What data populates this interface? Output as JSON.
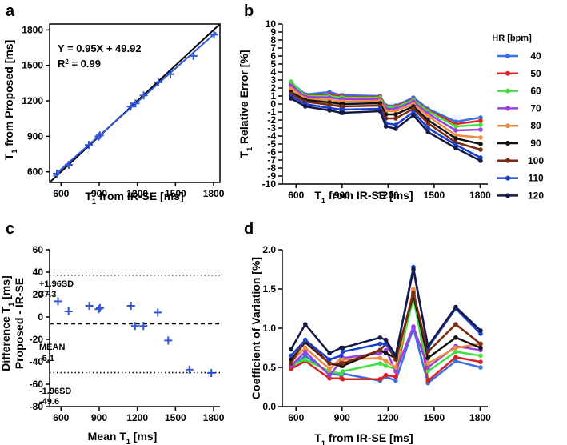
{
  "panels": {
    "a": {
      "letter": "a",
      "xlabel_pre": "T",
      "xlabel_sub": "1",
      "xlabel_post": " from IR-SE [ms]",
      "ylabel_pre": "T",
      "ylabel_sub": "1",
      "ylabel_post": " from Proposed [ms]",
      "eq_line1": "Y = 0.95X + 49.92",
      "eq_line2_pre": "R",
      "eq_line2_sup": "2",
      "eq_line2_post": " = 0.99"
    },
    "b": {
      "letter": "b",
      "xlabel_pre": "T",
      "xlabel_sub": "1",
      "xlabel_post": " from IR-SE [ms]",
      "ylabel_pre": "T",
      "ylabel_sub": "1",
      "ylabel_post": " Relative Error [%]",
      "legend_title": "HR [bpm]"
    },
    "c": {
      "letter": "c",
      "xlabel_pre": "Mean T",
      "xlabel_sub": "1",
      "xlabel_post": " [ms]",
      "ylabel1_pre": "Difference T",
      "ylabel1_sub": "1",
      "ylabel1_post": " [ms]",
      "ylabel2": "Proposed - IR-SE",
      "upper_label": "+1.96SD",
      "upper_value": "37.3",
      "mean_label": "MEAN",
      "mean_value": "-6.1",
      "lower_label": "-1.96SD",
      "lower_value": "-49.6"
    },
    "d": {
      "letter": "d",
      "xlabel_pre": "T",
      "xlabel_sub": "1",
      "xlabel_post": " from IR-SE [ms]",
      "ylabel": "Coefficient of Variation [%]"
    }
  },
  "chart_data": [
    {
      "id": "a",
      "type": "scatter",
      "title": "",
      "xlabel": "T1 from IR-SE [ms]",
      "ylabel": "T1 from Proposed [ms]",
      "xlim": [
        510,
        1850
      ],
      "ylim": [
        510,
        1850
      ],
      "xticks": [
        600,
        900,
        1200,
        1500,
        1800
      ],
      "yticks": [
        600,
        900,
        1200,
        1500,
        1800
      ],
      "x": [
        567,
        660,
        818,
        895,
        905,
        1148,
        1186,
        1250,
        1365,
        1460,
        1641,
        1803
      ],
      "y": [
        585,
        659,
        827,
        898,
        908,
        1152,
        1178,
        1246,
        1357,
        1426,
        1580,
        1760
      ],
      "fit": {
        "slope": 0.95,
        "intercept": 49.92,
        "r2": 0.99
      },
      "identity_line": true,
      "point_color": "#2f55d8"
    },
    {
      "id": "b",
      "type": "line",
      "xlabel": "T1 from IR-SE [ms]",
      "ylabel": "T1 Relative Error [%]",
      "xlim": [
        510,
        1850
      ],
      "ylim": [
        -10,
        10
      ],
      "xticks": [
        600,
        900,
        1200,
        1500,
        1800
      ],
      "yticks": [
        -10,
        -9,
        -8,
        -7,
        -6,
        -5,
        -4,
        -3,
        -2,
        -1,
        0,
        1,
        2,
        3,
        4,
        5,
        6,
        7,
        8,
        9,
        10
      ],
      "x": [
        567,
        660,
        818,
        895,
        905,
        1148,
        1186,
        1250,
        1365,
        1460,
        1641,
        1803
      ],
      "legend_title": "HR [bpm]",
      "series": [
        {
          "name": "40",
          "color": "#3b6fe8",
          "values": [
            2.7,
            1.2,
            1.5,
            1.1,
            1.1,
            1.0,
            -0.2,
            -0.2,
            0.8,
            -0.6,
            -2.2,
            -1.7
          ]
        },
        {
          "name": "50",
          "color": "#e02020",
          "values": [
            2.5,
            1.1,
            1.2,
            0.9,
            0.9,
            0.9,
            -0.3,
            -0.3,
            0.6,
            -0.8,
            -2.5,
            -2.1
          ]
        },
        {
          "name": "60",
          "color": "#40e040",
          "values": [
            2.8,
            1.0,
            1.0,
            0.8,
            0.8,
            0.8,
            -0.4,
            -0.4,
            0.5,
            -0.9,
            -2.8,
            -2.6
          ]
        },
        {
          "name": "70",
          "color": "#9a40e0",
          "values": [
            2.3,
            0.9,
            0.8,
            0.6,
            0.6,
            0.6,
            -0.6,
            -0.6,
            0.3,
            -1.2,
            -3.3,
            -3.2
          ]
        },
        {
          "name": "80",
          "color": "#f08a40",
          "values": [
            1.9,
            0.7,
            0.5,
            0.3,
            0.3,
            0.4,
            -0.9,
            -0.9,
            0.0,
            -1.5,
            -3.9,
            -4.2
          ]
        },
        {
          "name": "90",
          "color": "#111111",
          "values": [
            1.5,
            0.5,
            0.2,
            0.0,
            0.0,
            0.1,
            -1.3,
            -1.3,
            -0.3,
            -2.0,
            -4.3,
            -5.0
          ]
        },
        {
          "name": "100",
          "color": "#7a2a0e",
          "values": [
            1.3,
            0.3,
            -0.1,
            -0.3,
            -0.3,
            -0.2,
            -1.8,
            -1.8,
            -0.6,
            -2.4,
            -4.8,
            -5.7
          ]
        },
        {
          "name": "110",
          "color": "#1a3fd0",
          "values": [
            1.0,
            0.0,
            -0.5,
            -0.7,
            -0.7,
            -0.6,
            -2.4,
            -2.6,
            -1.0,
            -3.0,
            -5.1,
            -6.7
          ]
        },
        {
          "name": "120",
          "color": "#141a45",
          "values": [
            0.7,
            -0.3,
            -0.8,
            -1.1,
            -1.1,
            -0.9,
            -2.8,
            -3.1,
            -1.4,
            -3.5,
            -5.5,
            -7.1
          ]
        }
      ]
    },
    {
      "id": "c",
      "type": "scatter",
      "xlabel": "Mean T1 [ms]",
      "ylabel": "Difference T1 [ms] Proposed - IR-SE",
      "xlim": [
        510,
        1850
      ],
      "ylim": [
        -80,
        60
      ],
      "xticks": [
        600,
        900,
        1200,
        1500,
        1800
      ],
      "yticks": [
        -80,
        -60,
        -40,
        -20,
        0,
        20,
        40,
        60
      ],
      "x": [
        576,
        659,
        822,
        896,
        906,
        1150,
        1182,
        1248,
        1361,
        1443,
        1610,
        1782
      ],
      "y": [
        14,
        5,
        10,
        7,
        8,
        10,
        -8,
        -8,
        4,
        -21,
        -47,
        -50
      ],
      "reference_lines": {
        "upper": 37.3,
        "mean": -6.1,
        "lower": -49.6
      },
      "point_color": "#2f55d8"
    },
    {
      "id": "d",
      "type": "line",
      "xlabel": "T1 from IR-SE [ms]",
      "ylabel": "Coefficient of Variation [%]",
      "xlim": [
        510,
        1850
      ],
      "ylim": [
        0,
        2.0
      ],
      "xticks": [
        600,
        900,
        1200,
        1500,
        1800
      ],
      "yticks": [
        0.0,
        0.5,
        1.0,
        1.5,
        2.0
      ],
      "x": [
        567,
        660,
        818,
        895,
        905,
        1148,
        1186,
        1250,
        1365,
        1460,
        1641,
        1803
      ],
      "series": [
        {
          "name": "40",
          "color": "#3b6fe8",
          "values": [
            0.5,
            0.65,
            0.42,
            0.4,
            0.42,
            0.33,
            0.38,
            0.33,
            1.0,
            0.3,
            0.58,
            0.5
          ]
        },
        {
          "name": "50",
          "color": "#e02020",
          "values": [
            0.48,
            0.58,
            0.36,
            0.36,
            0.35,
            0.35,
            0.4,
            0.38,
            1.48,
            0.33,
            0.63,
            0.57
          ]
        },
        {
          "name": "60",
          "color": "#40e040",
          "values": [
            0.53,
            0.6,
            0.45,
            0.42,
            0.45,
            0.55,
            0.52,
            0.48,
            1.38,
            0.45,
            0.7,
            0.65
          ]
        },
        {
          "name": "70",
          "color": "#9a40e0",
          "values": [
            0.52,
            0.7,
            0.4,
            0.58,
            0.62,
            0.68,
            0.72,
            0.45,
            1.02,
            0.5,
            0.77,
            0.72
          ]
        },
        {
          "name": "80",
          "color": "#f08a40",
          "values": [
            0.57,
            0.75,
            0.48,
            0.62,
            0.6,
            0.62,
            0.58,
            0.5,
            1.5,
            0.55,
            0.75,
            0.8
          ]
        },
        {
          "name": "90",
          "color": "#111111",
          "values": [
            0.6,
            0.82,
            0.55,
            0.52,
            0.52,
            0.72,
            0.68,
            0.62,
            1.42,
            0.62,
            0.88,
            0.75
          ]
        },
        {
          "name": "100",
          "color": "#7a2a0e",
          "values": [
            0.55,
            0.85,
            0.55,
            0.55,
            0.55,
            0.72,
            0.8,
            0.6,
            1.45,
            0.7,
            1.05,
            0.8
          ]
        },
        {
          "name": "110",
          "color": "#1a3fd0",
          "values": [
            0.65,
            0.85,
            0.6,
            0.65,
            0.7,
            0.8,
            0.8,
            0.65,
            1.78,
            0.75,
            1.25,
            0.93
          ]
        },
        {
          "name": "120",
          "color": "#141a45",
          "values": [
            0.73,
            1.05,
            0.68,
            0.75,
            0.75,
            0.88,
            0.85,
            0.65,
            1.75,
            0.77,
            1.27,
            0.97
          ]
        }
      ]
    }
  ]
}
